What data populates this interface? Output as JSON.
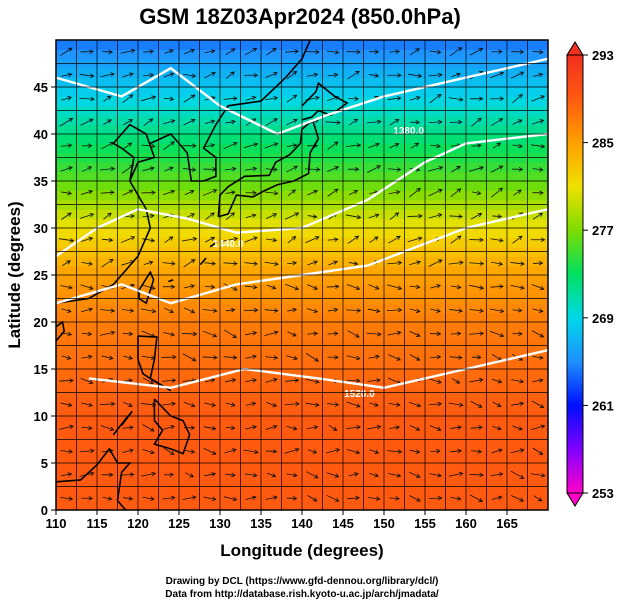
{
  "chart_data": {
    "type": "heatmap",
    "title": "GSM 18Z03Apr2024 (850.0hPa)",
    "xlabel": "Longitude (degrees)",
    "ylabel": "Latitude  (degrees)",
    "xlim": [
      110,
      170
    ],
    "ylim": [
      0,
      50
    ],
    "x_ticks": [
      110,
      115,
      120,
      125,
      130,
      135,
      140,
      145,
      150,
      155,
      160,
      165
    ],
    "y_ticks": [
      0,
      5,
      10,
      15,
      20,
      25,
      30,
      35,
      40,
      45
    ],
    "grid": true,
    "colorbar": {
      "position": "right",
      "ticks": [
        253,
        261,
        269,
        277,
        285,
        293
      ],
      "range": [
        253,
        293
      ],
      "colors": [
        "#ff00c8",
        "#8000ff",
        "#0010ff",
        "#1e90ff",
        "#00d8e8",
        "#00e060",
        "#7ddc00",
        "#f0e000",
        "#ffa000",
        "#ff5a10",
        "#f03020"
      ]
    },
    "field_profile": [
      {
        "lat": 50,
        "value": 264
      },
      {
        "lat": 45,
        "value": 268
      },
      {
        "lat": 40,
        "value": 272
      },
      {
        "lat": 35,
        "value": 276
      },
      {
        "lat": 30,
        "value": 281
      },
      {
        "lat": 25,
        "value": 285
      },
      {
        "lat": 20,
        "value": 287
      },
      {
        "lat": 15,
        "value": 288
      },
      {
        "lat": 10,
        "value": 289
      },
      {
        "lat": 5,
        "value": 289
      },
      {
        "lat": 0,
        "value": 289
      }
    ],
    "contour_labels": [
      {
        "text": "1380.0",
        "lon": 153,
        "lat": 40
      },
      {
        "text": "1440.0",
        "lon": 131,
        "lat": 28
      },
      {
        "text": "1520.0",
        "lon": 147,
        "lat": 12
      }
    ]
  },
  "credits": {
    "line1": "Drawing by DCL (https://www.gfd-dennou.org/library/dcl/)",
    "line2": "Data from http://database.rish.kyoto-u.ac.jp/arch/jmadata/"
  }
}
